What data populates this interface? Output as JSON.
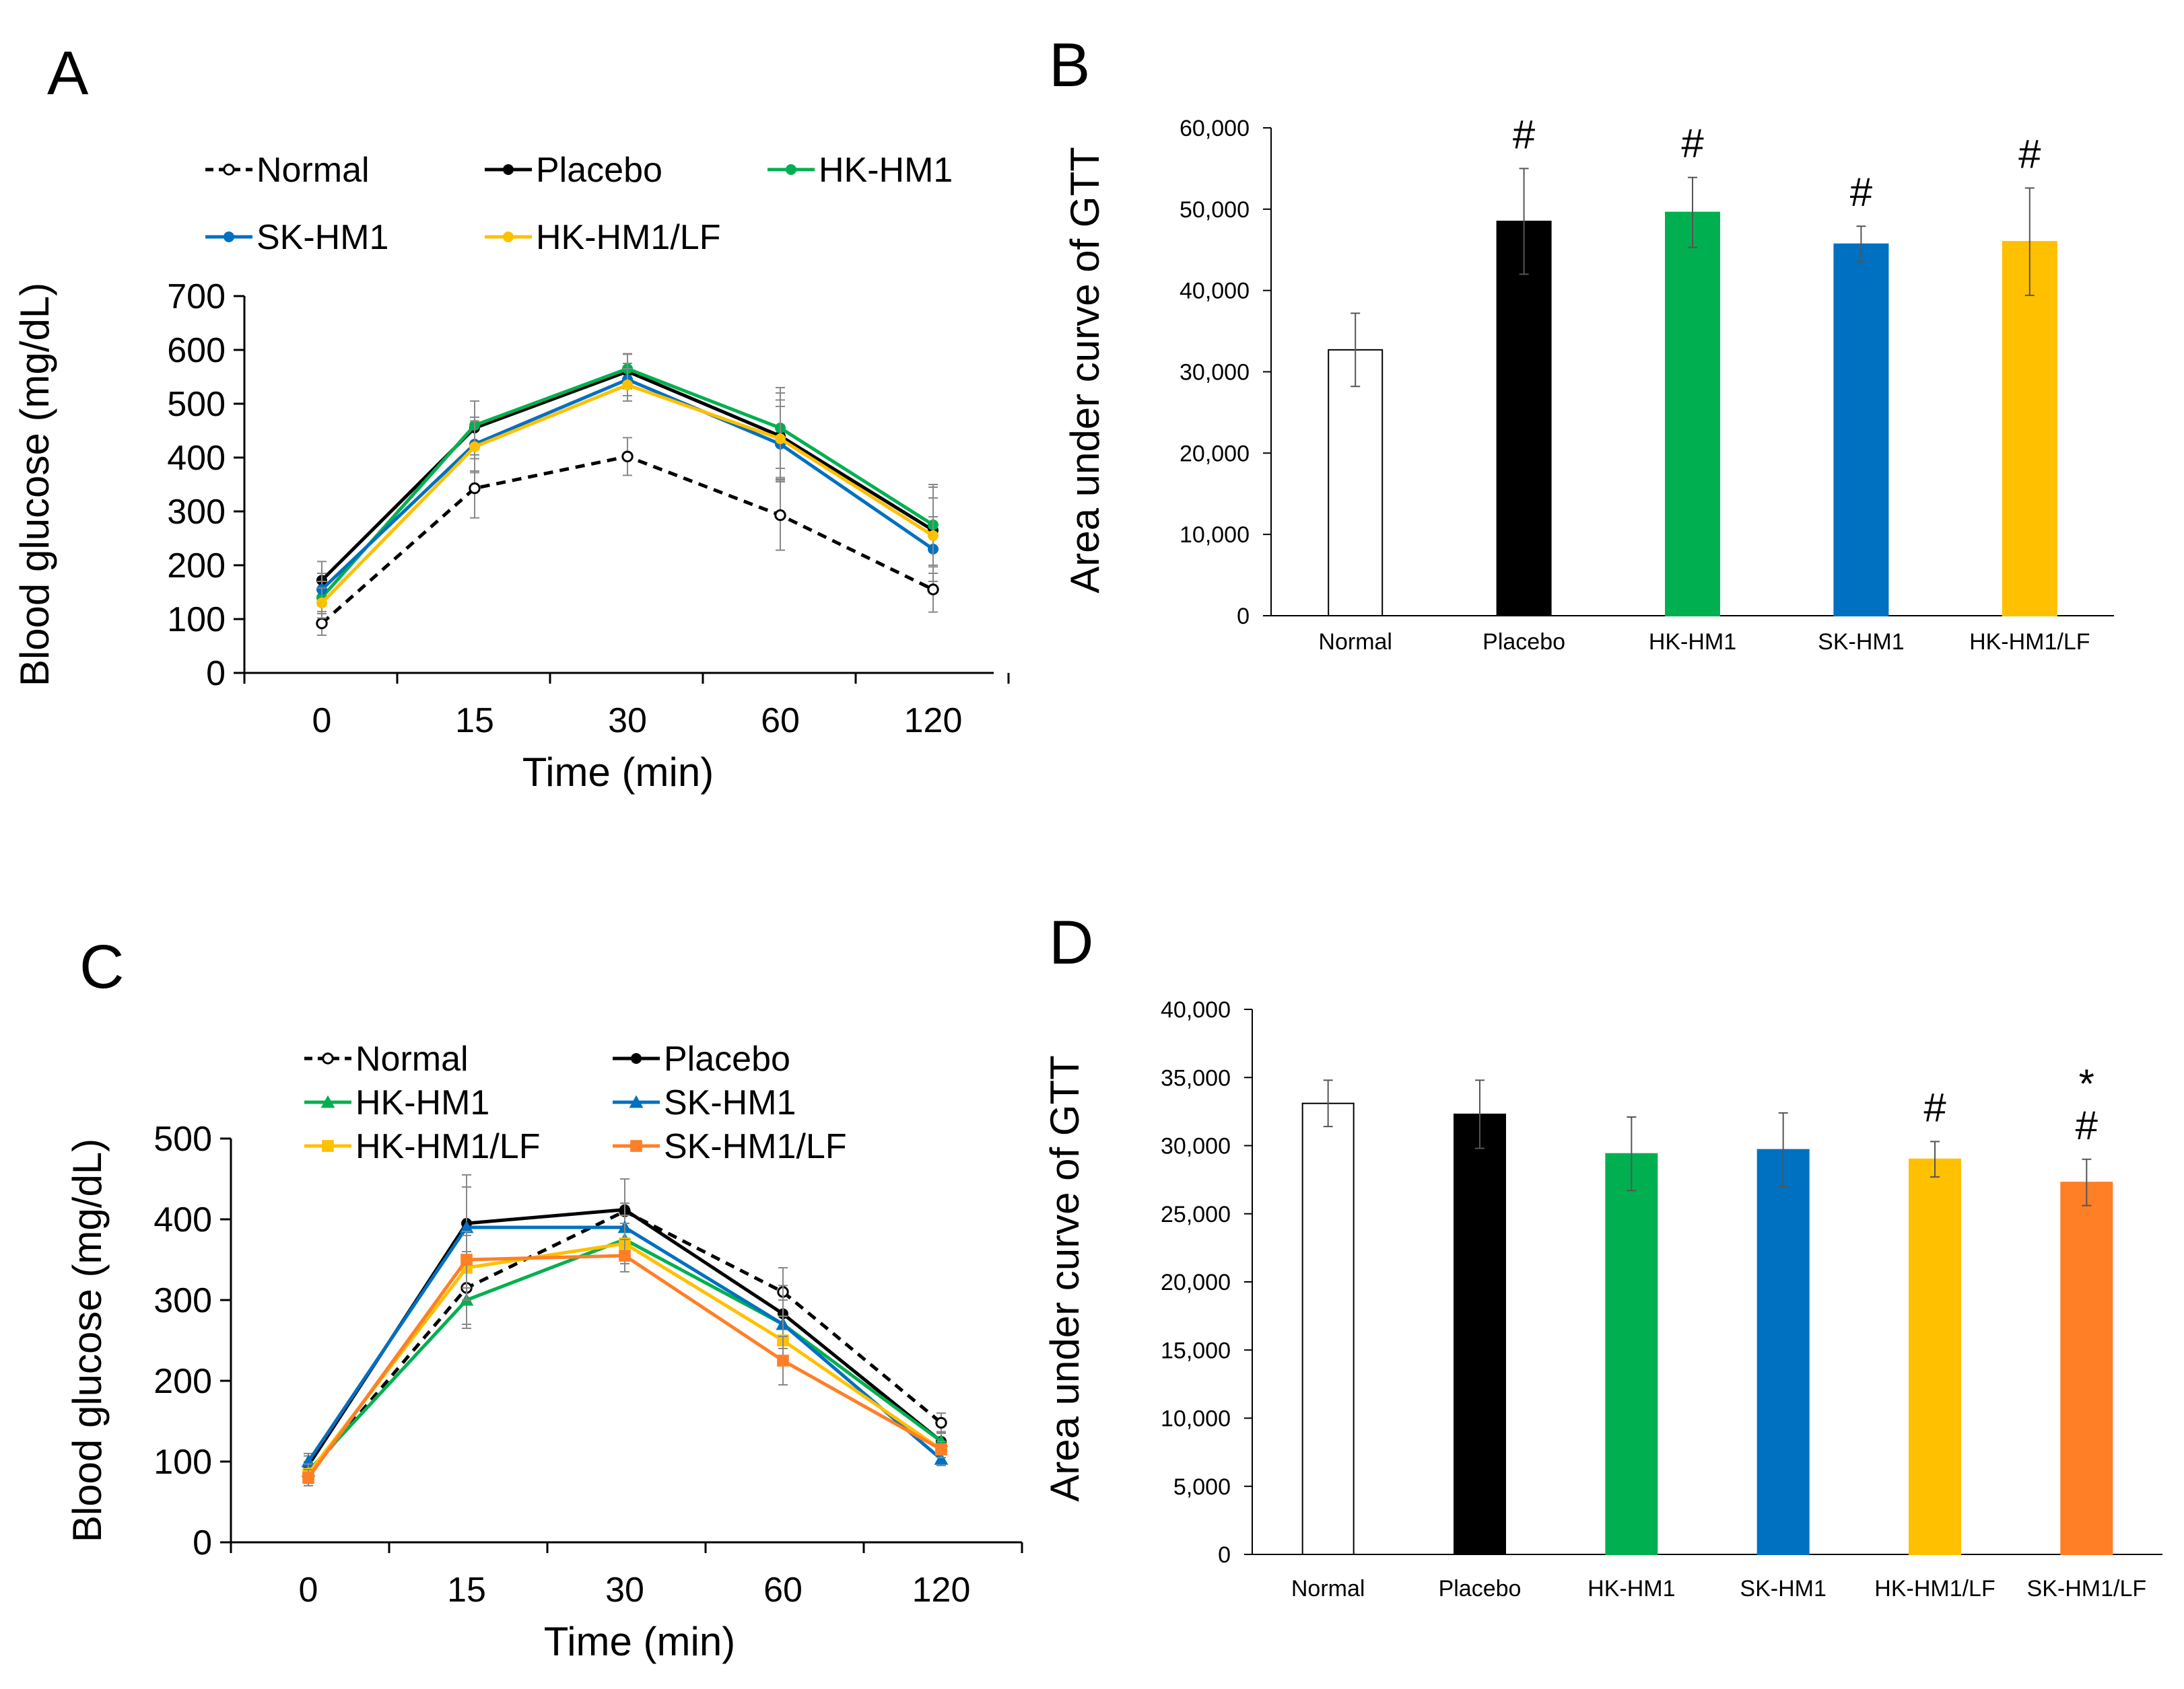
{
  "chart_data": [
    {
      "panel": "A",
      "type": "line",
      "xlabel": "Time (min)",
      "ylabel": "Blood glucose (mg/dL)",
      "categories": [
        "0",
        "15",
        "30",
        "60",
        "120"
      ],
      "ylim": [
        0,
        700
      ],
      "yticks": [
        "0",
        "100",
        "200",
        "300",
        "400",
        "500",
        "600",
        "700"
      ],
      "legend_placement": "top",
      "series": [
        {
          "name": "Normal",
          "color": "#000000",
          "style": "dashed",
          "marker": "open-circle",
          "values": [
            92,
            343,
            402,
            293,
            155
          ],
          "errors": [
            22,
            55,
            35,
            65,
            42
          ]
        },
        {
          "name": "Placebo",
          "color": "#000000",
          "style": "solid",
          "marker": "dot",
          "values": [
            172,
            455,
            560,
            440,
            265
          ],
          "errors": [
            35,
            50,
            32,
            80,
            80
          ]
        },
        {
          "name": "HK-HM1",
          "color": "#00B050",
          "style": "solid",
          "marker": "dot",
          "values": [
            140,
            460,
            565,
            455,
            275
          ],
          "errors": [
            30,
            45,
            28,
            75,
            75
          ]
        },
        {
          "name": "SK-HM1",
          "color": "#0070C0",
          "style": "solid",
          "marker": "dot",
          "values": [
            155,
            425,
            545,
            425,
            230
          ],
          "errors": [
            30,
            50,
            30,
            70,
            60
          ]
        },
        {
          "name": "HK-HM1/LF",
          "color": "#FFC000",
          "style": "solid",
          "marker": "dot",
          "values": [
            130,
            420,
            535,
            435,
            255
          ],
          "errors": [
            28,
            48,
            30,
            72,
            70
          ]
        }
      ]
    },
    {
      "panel": "B",
      "type": "bar",
      "ylabel": "Area under curve of GTT",
      "categories": [
        "Normal",
        "Placebo",
        "HK-HM1",
        "SK-HM1",
        "HK-HM1/LF"
      ],
      "values": [
        32700,
        48500,
        49600,
        45700,
        46000
      ],
      "errors": [
        4500,
        6500,
        4300,
        2200,
        6600
      ],
      "colors": [
        "#FFFFFF",
        "#000000",
        "#00B050",
        "#0070C0",
        "#FFC000"
      ],
      "annotations": [
        "",
        "#",
        "#",
        "#",
        "#"
      ],
      "ylim": [
        0,
        60000
      ],
      "yticks": [
        "0",
        "10,000",
        "20,000",
        "30,000",
        "40,000",
        "50,000",
        "60,000"
      ]
    },
    {
      "panel": "C",
      "type": "line",
      "xlabel": "Time (min)",
      "ylabel": "Blood glucose (mg/dL)",
      "categories": [
        "0",
        "15",
        "30",
        "60",
        "120"
      ],
      "ylim": [
        0,
        500
      ],
      "yticks": [
        "0",
        "100",
        "200",
        "300",
        "400",
        "500"
      ],
      "legend_placement": "top",
      "series": [
        {
          "name": "Normal",
          "color": "#000000",
          "style": "dashed",
          "marker": "open-circle",
          "values": [
            85,
            315,
            410,
            310,
            148
          ],
          "errors": [
            15,
            45,
            40,
            30,
            12
          ]
        },
        {
          "name": "Placebo",
          "color": "#000000",
          "style": "solid",
          "marker": "dot",
          "values": [
            95,
            395,
            412,
            283,
            125
          ],
          "errors": [
            12,
            60,
            38,
            35,
            12
          ]
        },
        {
          "name": "HK-HM1",
          "color": "#00B050",
          "style": "solid",
          "marker": "triangle",
          "values": [
            88,
            300,
            375,
            270,
            125
          ],
          "errors": [
            12,
            35,
            30,
            30,
            10
          ]
        },
        {
          "name": "SK-HM1",
          "color": "#0070C0",
          "style": "solid",
          "marker": "triangle",
          "values": [
            100,
            390,
            390,
            270,
            103
          ],
          "errors": [
            10,
            50,
            30,
            30,
            8
          ]
        },
        {
          "name": "HK-HM1/LF",
          "color": "#FFC000",
          "style": "solid",
          "marker": "square",
          "values": [
            85,
            340,
            370,
            250,
            115
          ],
          "errors": [
            12,
            40,
            25,
            30,
            10
          ]
        },
        {
          "name": "SK-HM1/LF",
          "color": "#FF7F27",
          "style": "solid",
          "marker": "square",
          "values": [
            80,
            350,
            355,
            225,
            115
          ],
          "errors": [
            10,
            35,
            20,
            30,
            10
          ]
        }
      ]
    },
    {
      "panel": "D",
      "type": "bar",
      "ylabel": "Area under curve of GTT",
      "categories": [
        "Normal",
        "Placebo",
        "HK-HM1",
        "SK-HM1",
        "HK-HM1/LF",
        "SK-HM1/LF"
      ],
      "values": [
        33100,
        32300,
        29400,
        29700,
        29000,
        27300
      ],
      "errors": [
        1700,
        2500,
        2700,
        2700,
        1300,
        1700
      ],
      "colors": [
        "#FFFFFF",
        "#000000",
        "#00B050",
        "#0070C0",
        "#FFC000",
        "#FF7F27"
      ],
      "annotations": [
        "",
        "",
        "",
        "",
        "#",
        "*\n#"
      ],
      "ylim": [
        0,
        40000
      ],
      "yticks": [
        "0",
        "5,000",
        "10,000",
        "15,000",
        "20,000",
        "25,000",
        "30,000",
        "35,000",
        "40,000"
      ]
    }
  ]
}
